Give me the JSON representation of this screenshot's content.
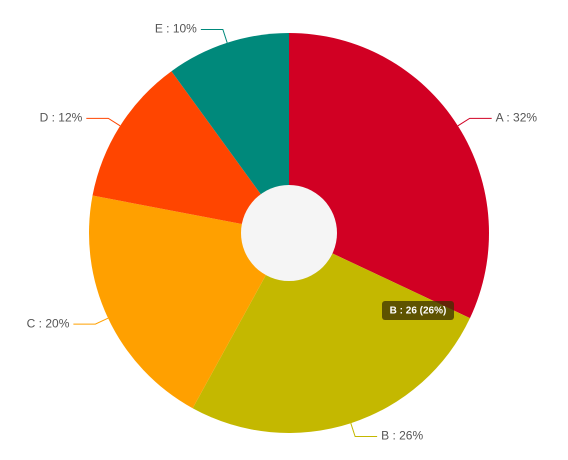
{
  "chart_data": {
    "type": "pie",
    "categories": [
      "A",
      "B",
      "C",
      "D",
      "E"
    ],
    "values": [
      32,
      26,
      20,
      12,
      10
    ],
    "value_labels": [
      "A : 32%",
      "B : 26%",
      "C : 20%",
      "D : 12%",
      "E : 10%"
    ],
    "colors": [
      "#d10023",
      "#c4b800",
      "#ffa000",
      "#ff4500",
      "#00897b"
    ],
    "tooltip": "B : 26 (26%)"
  }
}
